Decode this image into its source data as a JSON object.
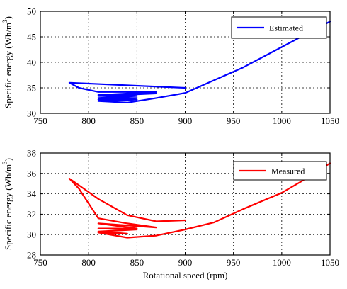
{
  "chart_data": [
    {
      "type": "line",
      "title": "",
      "xlabel": "",
      "ylabel": "Specific energy (Wh/m",
      "ylabel_sup": "3",
      "ylabel_close": ")",
      "xlim": [
        750,
        1050
      ],
      "ylim": [
        30,
        50
      ],
      "xticks": [
        750,
        800,
        850,
        900,
        950,
        1000,
        1050
      ],
      "yticks": [
        30,
        35,
        40,
        45,
        50
      ],
      "grid": true,
      "legend_position": "top-right",
      "series": [
        {
          "name": "Estimated",
          "color": "#0000ff",
          "x": [
            900,
            780,
            790,
            810,
            870,
            810,
            870,
            810,
            850,
            810,
            850,
            810,
            850,
            810,
            840,
            870,
            900,
            960,
            1000,
            1030,
            1050
          ],
          "y": [
            35,
            36,
            35,
            34.2,
            34.2,
            33.6,
            33.9,
            33.4,
            33.4,
            33,
            33,
            32.7,
            32.7,
            32.4,
            32.1,
            33,
            34,
            39,
            43,
            46,
            48
          ]
        }
      ]
    },
    {
      "type": "line",
      "title": "",
      "xlabel": "Rotational speed (rpm)",
      "ylabel": "Specific energy (Wh/m",
      "ylabel_sup": "3",
      "ylabel_close": ")",
      "xlim": [
        750,
        1050
      ],
      "ylim": [
        28,
        38
      ],
      "xticks": [
        750,
        800,
        850,
        900,
        950,
        1000,
        1050
      ],
      "yticks": [
        28,
        30,
        32,
        34,
        36,
        38
      ],
      "grid": true,
      "legend_position": "top-right",
      "series": [
        {
          "name": "Measured",
          "color": "#ff0000",
          "x": [
            900,
            870,
            840,
            810,
            780,
            790,
            810,
            840,
            870,
            810,
            850,
            810,
            850,
            810,
            840,
            810,
            840,
            870,
            900,
            930,
            960,
            1000,
            1020,
            1050
          ],
          "y": [
            31.4,
            31.3,
            31.9,
            33.5,
            35.5,
            34.5,
            31.6,
            31.1,
            30.7,
            31.1,
            30.6,
            30.6,
            30.5,
            30.3,
            30.1,
            30.2,
            29.7,
            29.9,
            30.5,
            31.2,
            32.5,
            34.1,
            35.2,
            37
          ]
        }
      ]
    }
  ]
}
